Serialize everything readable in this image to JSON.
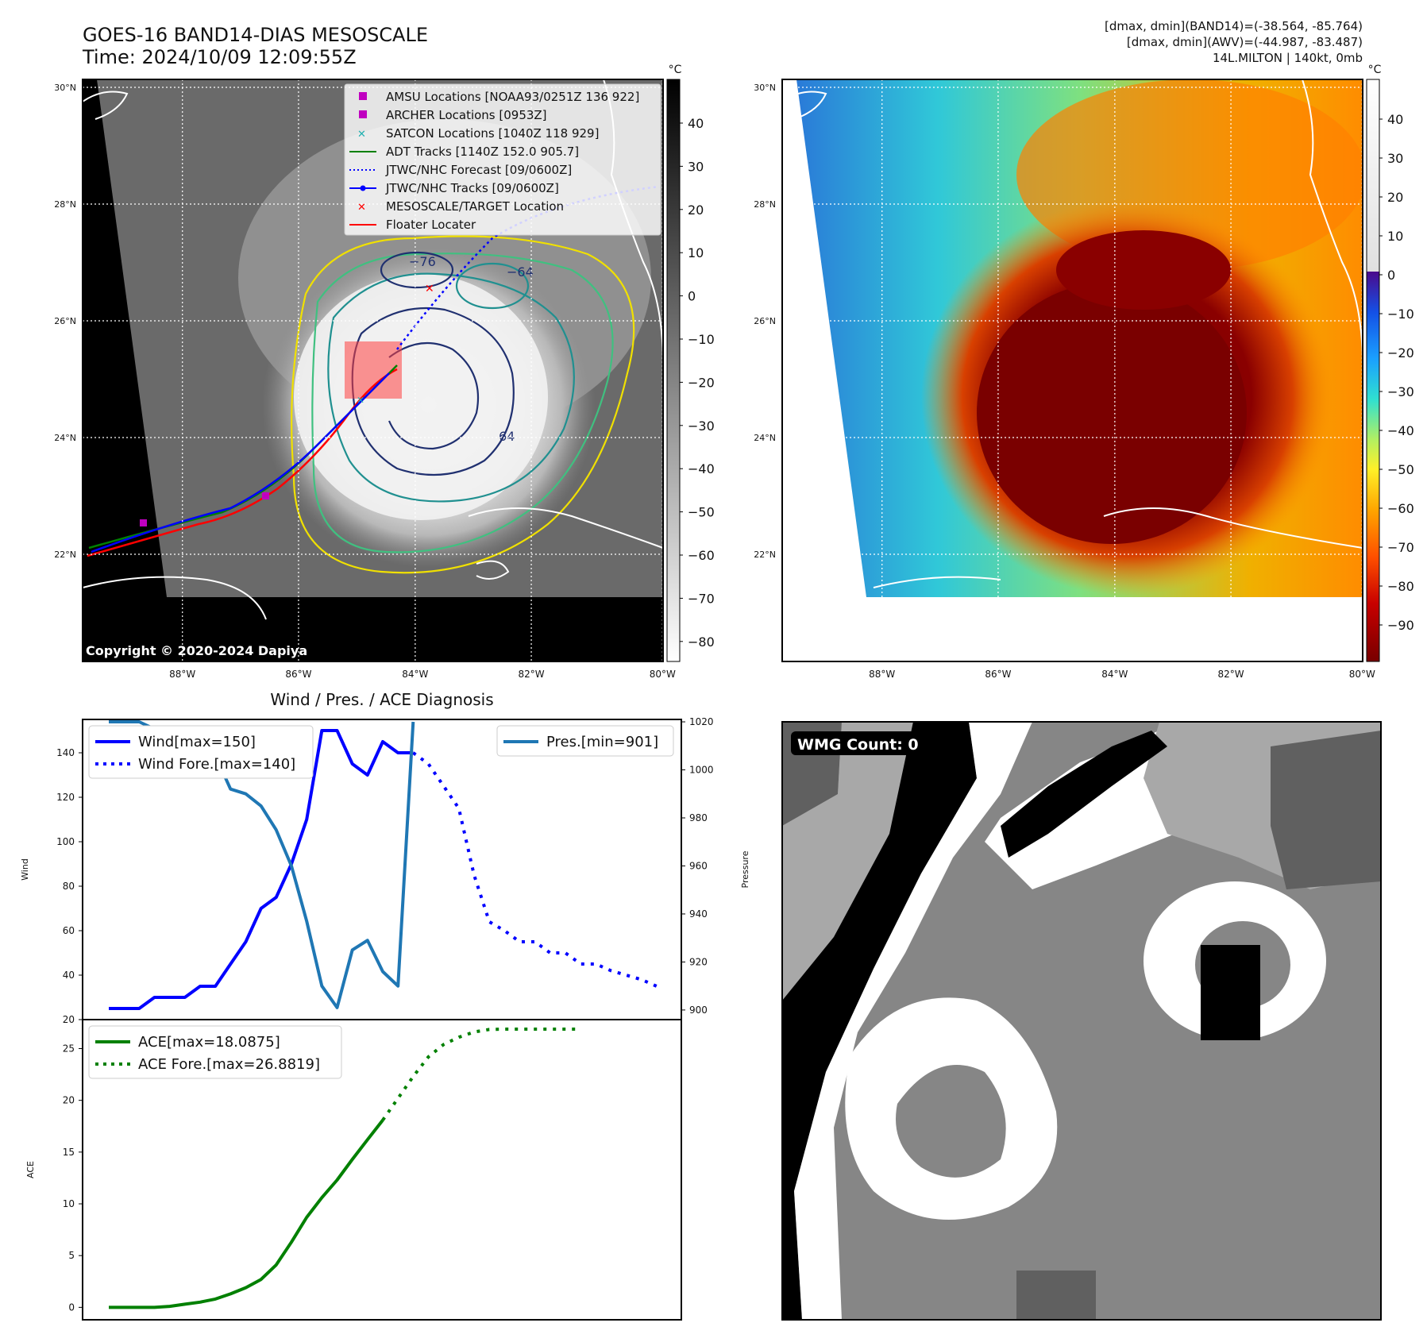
{
  "header": {
    "title_line1": "GOES-16 BAND14-DIAS MESOSCALE",
    "title_line2": "Time: 2024/10/09 12:09:55Z",
    "right_line1": "[dmax, dmin](BAND14)=(-38.564, -85.764)",
    "right_line2": "[dmax, dmin](AWV)=(-44.987, -83.487)",
    "right_line3": "14L.MILTON | 140kt, 0mb"
  },
  "maps": {
    "lat_ticks": [
      "30°N",
      "28°N",
      "26°N",
      "24°N",
      "22°N"
    ],
    "lon_ticks": [
      "88°W",
      "86°W",
      "84°W",
      "82°W",
      "80°W"
    ],
    "copyright": "Copyright © 2020-2024 Dapiya",
    "contour_labels": [
      "−76",
      "−64",
      "64"
    ],
    "left_colorbar": {
      "unit": "°C",
      "ticks": [
        "40",
        "30",
        "20",
        "10",
        "0",
        "−10",
        "−20",
        "−30",
        "−40",
        "−50",
        "−60",
        "−70",
        "−80"
      ]
    },
    "right_colorbar": {
      "unit": "°C",
      "ticks": [
        "40",
        "30",
        "20",
        "10",
        "0",
        "−10",
        "−20",
        "−30",
        "−40",
        "−50",
        "−60",
        "−70",
        "−80",
        "−90"
      ]
    },
    "legend": [
      {
        "label": "AMSU Locations [NOAA93/0251Z 136 922]",
        "color": "#c000c0",
        "marker": "square"
      },
      {
        "label": "ARCHER Locations [0953Z]",
        "color": "#c000c0",
        "marker": "square"
      },
      {
        "label": "SATCON Locations [1040Z 118 929]",
        "color": "#20b0b0",
        "marker": "x"
      },
      {
        "label": "ADT Tracks [1140Z 152.0 905.7]",
        "color": "#008000",
        "marker": "line"
      },
      {
        "label": "JTWC/NHC Forecast [09/0600Z]",
        "color": "#0000ff",
        "marker": "dotted"
      },
      {
        "label": "JTWC/NHC Tracks [09/0600Z]",
        "color": "#0000ff",
        "marker": "line-dot"
      },
      {
        "label": "MESOSCALE/TARGET Location",
        "color": "#ff0000",
        "marker": "x"
      },
      {
        "label": "Floater Locater",
        "color": "#ff0000",
        "marker": "line"
      }
    ]
  },
  "chart_data": [
    {
      "type": "line",
      "title": "Wind / Pres. / ACE Diagnosis",
      "ylabel": "Wind",
      "ylabel_right": "Pressure",
      "yticks": [
        "140",
        "120",
        "100",
        "80",
        "60",
        "40",
        "20"
      ],
      "yticks_right": [
        "1020",
        "1000",
        "980",
        "960",
        "940",
        "920",
        "900"
      ],
      "ylim": [
        20,
        155
      ],
      "ylim_right": [
        896,
        1021
      ],
      "series": [
        {
          "name": "Wind[max=150]",
          "color": "#0000ff",
          "style": "solid",
          "values": [
            [
              0,
              25
            ],
            [
              1,
              25
            ],
            [
              2,
              25
            ],
            [
              3,
              30
            ],
            [
              4,
              30
            ],
            [
              5,
              30
            ],
            [
              6,
              35
            ],
            [
              7,
              35
            ],
            [
              8,
              45
            ],
            [
              9,
              55
            ],
            [
              10,
              70
            ],
            [
              11,
              75
            ],
            [
              12,
              90
            ],
            [
              13,
              110
            ],
            [
              14,
              150
            ],
            [
              15,
              150
            ],
            [
              16,
              135
            ],
            [
              17,
              130
            ],
            [
              18,
              145
            ],
            [
              19,
              140
            ],
            [
              20,
              140
            ]
          ]
        },
        {
          "name": "Wind Fore.[max=140]",
          "color": "#0000ff",
          "style": "dotted",
          "values": [
            [
              20,
              140
            ],
            [
              21,
              135
            ],
            [
              22,
              125
            ],
            [
              23,
              115
            ],
            [
              24,
              85
            ],
            [
              25,
              64
            ],
            [
              26,
              60
            ],
            [
              27,
              55
            ],
            [
              28,
              55
            ],
            [
              29,
              50
            ],
            [
              30,
              50
            ],
            [
              31,
              45
            ],
            [
              32,
              45
            ],
            [
              33,
              42
            ],
            [
              34,
              40
            ],
            [
              35,
              38
            ],
            [
              36,
              35
            ]
          ]
        },
        {
          "name": "Pres.[min=901]",
          "color": "#1f77b4",
          "style": "solid",
          "axis": "right",
          "values": [
            [
              0,
              1020
            ],
            [
              1,
              1020
            ],
            [
              2,
              1020
            ],
            [
              3,
              1017
            ],
            [
              4,
              1016
            ],
            [
              5,
              1014
            ],
            [
              6,
              1013
            ],
            [
              7,
              1006
            ],
            [
              8,
              992
            ],
            [
              9,
              990
            ],
            [
              10,
              985
            ],
            [
              11,
              975
            ],
            [
              12,
              960
            ],
            [
              13,
              937
            ],
            [
              14,
              910
            ],
            [
              15,
              901
            ],
            [
              16,
              925
            ],
            [
              17,
              929
            ],
            [
              18,
              916
            ],
            [
              19,
              910
            ],
            [
              20,
              1020
            ]
          ]
        }
      ]
    },
    {
      "type": "line",
      "ylabel": "ACE",
      "yticks": [
        "25",
        "20",
        "15",
        "10",
        "5",
        "0"
      ],
      "ylim": [
        -1.2,
        27.8
      ],
      "series": [
        {
          "name": "ACE[max=18.0875]",
          "color": "#008000",
          "style": "solid",
          "values": [
            [
              0,
              0
            ],
            [
              1,
              0
            ],
            [
              2,
              0
            ],
            [
              3,
              0
            ],
            [
              4,
              0.1
            ],
            [
              5,
              0.3
            ],
            [
              6,
              0.5
            ],
            [
              7,
              0.8
            ],
            [
              8,
              1.3
            ],
            [
              9,
              1.9
            ],
            [
              10,
              2.7
            ],
            [
              11,
              4.1
            ],
            [
              12,
              6.3
            ],
            [
              13,
              8.7
            ],
            [
              14,
              10.6
            ],
            [
              15,
              12.3
            ],
            [
              16,
              14.3
            ],
            [
              17,
              16.2
            ],
            [
              18,
              18.0875
            ]
          ]
        },
        {
          "name": "ACE Fore.[max=26.8819]",
          "color": "#008000",
          "style": "dotted",
          "values": [
            [
              18,
              18.0875
            ],
            [
              19,
              20.2
            ],
            [
              20,
              22.3
            ],
            [
              21,
              24.2
            ],
            [
              22,
              25.4
            ],
            [
              23,
              26.1
            ],
            [
              24,
              26.6
            ],
            [
              25,
              26.85
            ],
            [
              26,
              26.88
            ],
            [
              27,
              26.88
            ],
            [
              28,
              26.88
            ],
            [
              29,
              26.88
            ],
            [
              30,
              26.88
            ],
            [
              31,
              26.88
            ]
          ]
        }
      ]
    }
  ],
  "wmg": {
    "label": "WMG Count: 0"
  }
}
